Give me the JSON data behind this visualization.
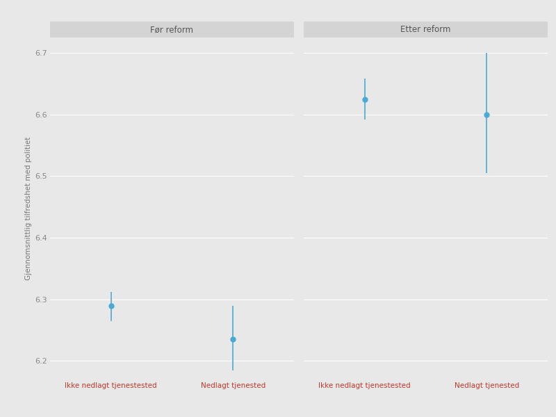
{
  "panels": [
    {
      "title": "Før reform",
      "categories": [
        "Ikke nedlagt tjenestested",
        "Nedlagt tjenested"
      ],
      "means": [
        6.29,
        6.235
      ],
      "ci_low": [
        6.265,
        6.185
      ],
      "ci_high": [
        6.312,
        6.29
      ]
    },
    {
      "title": "Etter reform",
      "categories": [
        "Ikke nedlagt tjenestested",
        "Nedlagt tjenested"
      ],
      "means": [
        6.625,
        6.6
      ],
      "ci_low": [
        6.592,
        6.505
      ],
      "ci_high": [
        6.658,
        6.7
      ]
    }
  ],
  "ylim": [
    6.17,
    6.725
  ],
  "yticks": [
    6.2,
    6.3,
    6.4,
    6.5,
    6.6,
    6.7
  ],
  "ylabel": "Gjennomsnittlig tilfredshet med politiet",
  "point_color": "#4baad3",
  "line_color": "#4baad3",
  "bg_color": "#e8e8e8",
  "panel_bg": "#e8e8e8",
  "strip_color": "#d4d4d4",
  "grid_color": "#ffffff",
  "marker_size": 6,
  "line_width": 1.2,
  "title_fontsize": 8.5,
  "label_fontsize": 7.5,
  "tick_fontsize": 8,
  "ylabel_fontsize": 7.5,
  "xlabel_color": "#c0392b",
  "tick_color": "#888888"
}
